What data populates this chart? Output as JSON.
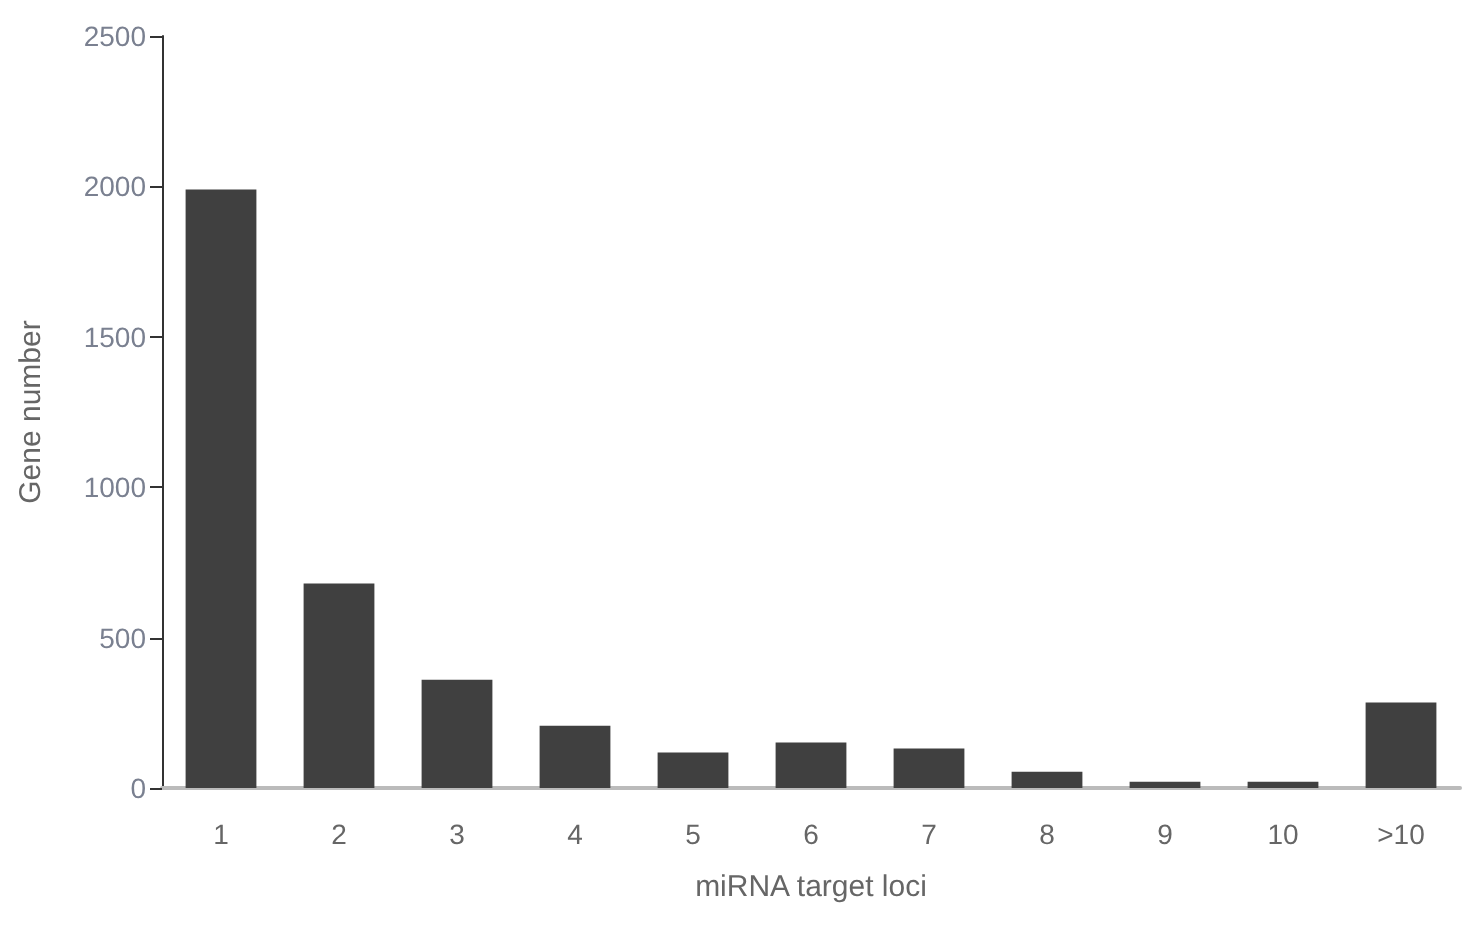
{
  "chart_data": {
    "type": "bar",
    "xlabel": "miRNA target loci",
    "ylabel": "Gene number",
    "categories": [
      "1",
      "2",
      "3",
      "4",
      "5",
      "6",
      "7",
      "8",
      "9",
      "10",
      ">10"
    ],
    "values": [
      1990,
      680,
      360,
      207,
      118,
      151,
      131,
      54,
      21,
      21,
      284
    ],
    "color": "#404040",
    "ylim": [
      0,
      2500
    ],
    "yticks": [
      0,
      500,
      1000,
      1500,
      2000,
      2500
    ],
    "grid": false
  }
}
